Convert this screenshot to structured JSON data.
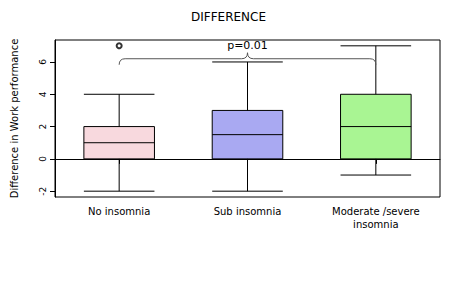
{
  "chart_data": {
    "type": "boxplot",
    "title": "DIFFERENCE",
    "y_label": "Difference in Work performance",
    "categories": [
      "No insomnia",
      "Sub insomnia",
      "Moderate /severe\ninsomnia"
    ],
    "values": [
      [
        -2,
        0,
        1,
        2,
        4
      ],
      [
        -2,
        0,
        1.5,
        3,
        6
      ],
      [
        -1,
        0,
        2,
        4,
        7
      ]
    ],
    "colors": [
      "#f8d9de",
      "#a9a9f2",
      "#a9f593"
    ],
    "outliers": [
      {
        "category": "No insomnia",
        "value": 7
      }
    ],
    "annotations": [
      {
        "text": "p=0.01",
        "from": "No insomnia",
        "to": "Moderate /severe\ninsomnia",
        "y": 6.2
      }
    ],
    "ylim": [
      -2.36,
      7.36
    ],
    "yticks": [
      -2,
      0,
      2,
      4,
      6
    ],
    "grid": false
  }
}
